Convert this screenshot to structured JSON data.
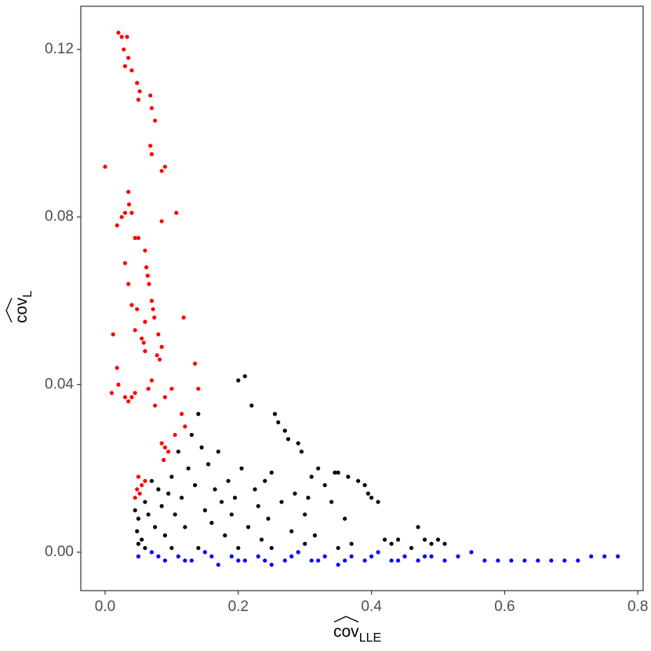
{
  "chart_data": {
    "type": "scatter",
    "x_label": "cov",
    "x_label_subscript": "LLE",
    "y_label": "cov",
    "y_label_subscript": "L",
    "xlim": [
      -0.0365,
      0.808
    ],
    "ylim": [
      -0.00917,
      0.1303
    ],
    "xticks": [
      {
        "value": 0,
        "label": "0.0"
      },
      0.2,
      0.4,
      0.6,
      0.8
    ],
    "yticks": [
      {
        "value": 0,
        "label": "0.00"
      },
      {
        "value": 0.04,
        "label": "0.04"
      },
      {
        "value": 0.08,
        "label": "0.08"
      },
      {
        "value": 0.12,
        "label": "0.12"
      }
    ],
    "grid": false,
    "series": [
      {
        "color": "#000000",
        "x": [
          0.045,
          0.05,
          0.048,
          0.05,
          0.055,
          0.06,
          0.065,
          0.07,
          0.075,
          0.08,
          0.085,
          0.09,
          0.095,
          0.1,
          0.105,
          0.11,
          0.115,
          0.12,
          0.125,
          0.13,
          0.135,
          0.14,
          0.145,
          0.15,
          0.155,
          0.16,
          0.165,
          0.17,
          0.175,
          0.18,
          0.185,
          0.19,
          0.195,
          0.2,
          0.21,
          0.205,
          0.215,
          0.22,
          0.225,
          0.23,
          0.235,
          0.24,
          0.245,
          0.25,
          0.255,
          0.26,
          0.265,
          0.27,
          0.275,
          0.28,
          0.285,
          0.29,
          0.295,
          0.3,
          0.305,
          0.31,
          0.315,
          0.32,
          0.33,
          0.34,
          0.345,
          0.35,
          0.36,
          0.365,
          0.37,
          0.38,
          0.39,
          0.395,
          0.4,
          0.41,
          0.42,
          0.43,
          0.44,
          0.46,
          0.47,
          0.48,
          0.49,
          0.5,
          0.51,
          0.14,
          0.25,
          0.3,
          0.35,
          0.06,
          0.1,
          0.2
        ],
        "values": [
          0.01,
          0.008,
          0.005,
          0.002,
          0.003,
          0.012,
          0.009,
          0.017,
          0.006,
          0.015,
          0.011,
          0.004,
          0.014,
          0.018,
          0.009,
          0.024,
          0.013,
          0.006,
          0.02,
          0.028,
          0.016,
          0.033,
          0.025,
          0.01,
          0.021,
          0.007,
          0.015,
          0.024,
          0.012,
          0.004,
          0.017,
          0.009,
          0.013,
          0.041,
          0.042,
          0.02,
          0.006,
          0.035,
          0.015,
          0.011,
          0.003,
          0.017,
          0.008,
          0.019,
          0.033,
          0.031,
          0.012,
          0.029,
          0.027,
          0.005,
          0.014,
          0.026,
          0.024,
          0.009,
          0.013,
          0.018,
          0.004,
          0.02,
          0.016,
          0.012,
          0.019,
          0.019,
          0.008,
          0.018,
          0.002,
          0.017,
          0.016,
          0.014,
          0.013,
          0.012,
          0.003,
          0.002,
          0.003,
          0.001,
          0.006,
          0.003,
          0.002,
          0.003,
          0.002,
          0.001,
          0.001,
          0.002,
          0.001,
          0.001,
          0.001,
          0.001
        ]
      },
      {
        "color": "#0000ff",
        "x": [
          0.05,
          0.07,
          0.09,
          0.11,
          0.13,
          0.15,
          0.17,
          0.19,
          0.21,
          0.23,
          0.25,
          0.27,
          0.29,
          0.31,
          0.33,
          0.35,
          0.37,
          0.39,
          0.41,
          0.43,
          0.45,
          0.47,
          0.49,
          0.51,
          0.53,
          0.55,
          0.57,
          0.59,
          0.61,
          0.63,
          0.65,
          0.67,
          0.69,
          0.71,
          0.73,
          0.75,
          0.77,
          0.08,
          0.12,
          0.16,
          0.2,
          0.24,
          0.28,
          0.32,
          0.36,
          0.4,
          0.44,
          0.48
        ],
        "values": [
          -0.001,
          0,
          -0.002,
          -0.001,
          -0.002,
          0,
          -0.003,
          -0.001,
          -0.002,
          -0.001,
          -0.003,
          -0.002,
          0,
          -0.002,
          -0.001,
          -0.003,
          -0.001,
          -0.002,
          0,
          -0.002,
          -0.001,
          -0.002,
          -0.001,
          -0.002,
          -0.001,
          0,
          -0.002,
          -0.002,
          -0.002,
          -0.002,
          -0.002,
          -0.002,
          -0.002,
          -0.002,
          -0.001,
          -0.001,
          -0.001,
          -0.001,
          -0.002,
          -0.001,
          -0.002,
          -0.002,
          -0.001,
          -0.002,
          -0.002,
          -0.001,
          -0.002,
          -0.001
        ]
      },
      {
        "color": "#ff0000",
        "x": [
          0.02,
          0.025,
          0.033,
          0.028,
          0.035,
          0.04,
          0.03,
          0.048,
          0.052,
          0.05,
          0.068,
          0.07,
          0.075,
          0.068,
          0.07,
          0.09,
          0.085,
          0,
          0.035,
          0.036,
          0.03,
          0.025,
          0.04,
          0.018,
          0.045,
          0.05,
          0.06,
          0.085,
          0.107,
          0.03,
          0.062,
          0.064,
          0.066,
          0.035,
          0.07,
          0.072,
          0.074,
          0.04,
          0.048,
          0.06,
          0.118,
          0.045,
          0.012,
          0.055,
          0.058,
          0.08,
          0.085,
          0.078,
          0.082,
          0.06,
          0.018,
          0.02,
          0.01,
          0.03,
          0.035,
          0.04,
          0.045,
          0.07,
          0.065,
          0.1,
          0.09,
          0.135,
          0.14,
          0.115,
          0.075,
          0.12,
          0.085,
          0.09,
          0.095,
          0.088,
          0.105,
          0.05,
          0.055,
          0.048,
          0.052,
          0.045,
          0.06
        ],
        "values": [
          0.124,
          0.123,
          0.123,
          0.12,
          0.118,
          0.115,
          0.116,
          0.112,
          0.11,
          0.108,
          0.109,
          0.106,
          0.103,
          0.097,
          0.095,
          0.092,
          0.091,
          0.092,
          0.086,
          0.083,
          0.081,
          0.08,
          0.081,
          0.078,
          0.075,
          0.075,
          0.072,
          0.079,
          0.081,
          0.069,
          0.068,
          0.066,
          0.064,
          0.064,
          0.06,
          0.058,
          0.056,
          0.059,
          0.058,
          0.055,
          0.056,
          0.053,
          0.052,
          0.051,
          0.05,
          0.052,
          0.049,
          0.047,
          0.046,
          0.048,
          0.044,
          0.04,
          0.038,
          0.037,
          0.036,
          0.037,
          0.038,
          0.041,
          0.039,
          0.039,
          0.037,
          0.045,
          0.039,
          0.033,
          0.035,
          0.03,
          0.026,
          0.025,
          0.024,
          0.022,
          0.028,
          0.018,
          0.016,
          0.015,
          0.014,
          0.013,
          0.017
        ]
      }
    ]
  }
}
